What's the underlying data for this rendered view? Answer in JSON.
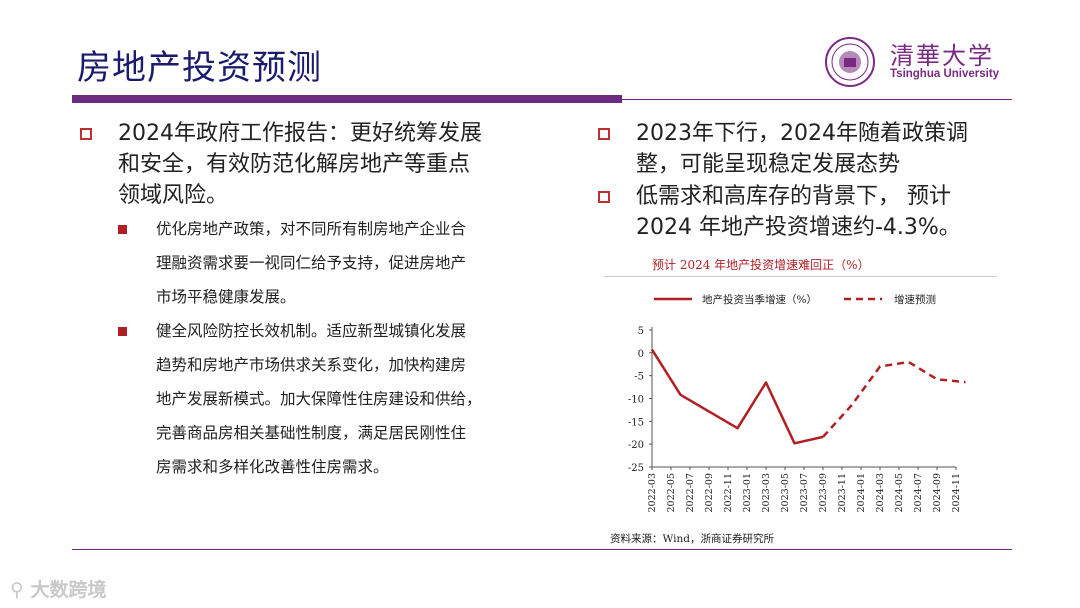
{
  "header": {
    "title": "房地产投资预测",
    "logo_cn": "清華大学",
    "logo_en": "Tsinghua University"
  },
  "left": {
    "bullet": "2024年政府工作报告：更好统筹发展和安全，有效防范化解房地产等重点领域风险。",
    "bullet_lines": [
      "2024年政府工作报告：更好统筹发展",
      "和安全，有效防范化解房地产等重点",
      "领域风险。"
    ],
    "sub1_lines": [
      "优化房地产政策，对不同所有制房地产企业合",
      "理融资需求要一视同仁给予支持，促进房地产",
      "市场平稳健康发展。"
    ],
    "sub2_lines": [
      "健全风险防控长效机制。适应新型城镇化发展",
      "趋势和房地产市场供求关系变化，加快构建房",
      "地产发展新模式。加大保障性住房建设和供给，",
      "完善商品房相关基础性制度，满足居民刚性住",
      "房需求和多样化改善性住房需求。"
    ]
  },
  "right": {
    "bullet1_lines": [
      "2023年下行，2024年随着政策调",
      "整，可能呈现稳定发展态势"
    ],
    "bullet2_lines": [
      "低需求和高库存的背景下， 预计",
      "2024 年地产投资增速约-4.3%。"
    ]
  },
  "chart_data": {
    "type": "line",
    "title": "预计 2024 年地产投资增速难回正（%）",
    "x": [
      "2022-03",
      "2022-05",
      "2022-07",
      "2022-09",
      "2022-11",
      "2023-01",
      "2023-03",
      "2023-05",
      "2023-07",
      "2023-09",
      "2023-11",
      "2024-01",
      "2024-03",
      "2024-05",
      "2024-07",
      "2024-09",
      "2024-11"
    ],
    "series": [
      {
        "name": "地产投资当季增速（%）",
        "style": "solid",
        "color": "#b11f24",
        "points": [
          [
            "2022-03",
            0.7
          ],
          [
            "2022-06",
            -9.2
          ],
          [
            "2022-12",
            -16.5
          ],
          [
            "2023-03",
            -6.5
          ],
          [
            "2023-06",
            -19.8
          ],
          [
            "2023-09",
            -18.4
          ]
        ]
      },
      {
        "name": "增速预测",
        "style": "dashed",
        "color": "#b11f24",
        "points": [
          [
            "2023-09",
            -18.4
          ],
          [
            "2023-12",
            -11.5
          ],
          [
            "2024-03",
            -3.0
          ],
          [
            "2024-06",
            -2.0
          ],
          [
            "2024-09",
            -5.8
          ],
          [
            "2024-12",
            -6.4
          ]
        ]
      }
    ],
    "ylim": [
      -25,
      5
    ],
    "yticks": [
      5,
      0,
      -5,
      -10,
      -15,
      -20,
      -25
    ],
    "legend": "top",
    "source": "资料来源：Wind，浙商证券研究所"
  },
  "watermark": "大数跨境"
}
